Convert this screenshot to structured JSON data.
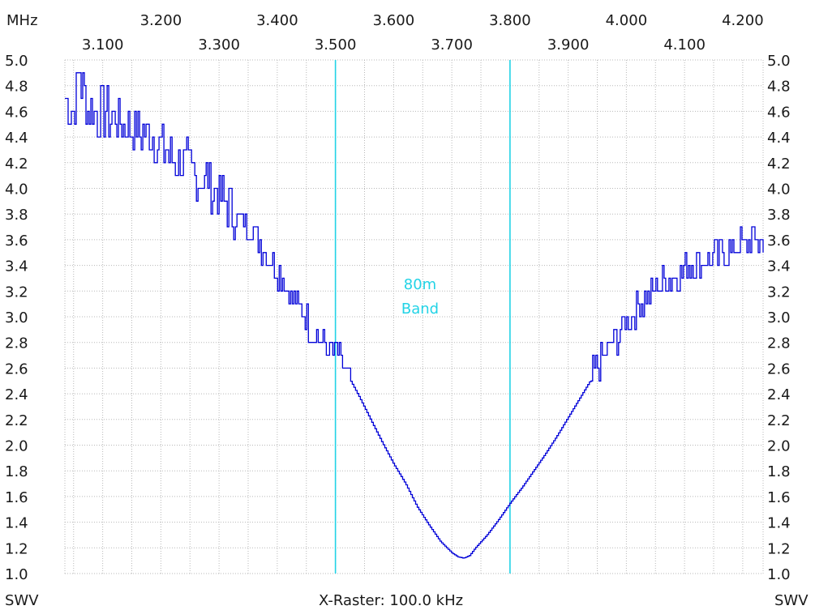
{
  "labels": {
    "unit_top_left": "MHz",
    "y_label_left": "SWV",
    "y_label_right": "SWV",
    "raster": "X-Raster: 100.0 kHz",
    "band_line1": "80m",
    "band_line2": "Band"
  },
  "colors": {
    "trace": "#0000d8",
    "band": "#22d3e6",
    "grid": "#b8b8b8",
    "text": "#1a1a1a"
  },
  "chart_data": {
    "type": "line",
    "title": "",
    "xlabel": "X-Raster: 100.0 kHz",
    "ylabel": "SWV",
    "xlim": [
      3.035,
      4.235
    ],
    "ylim": [
      1.0,
      5.0
    ],
    "grid": true,
    "x_ticks_top": [
      "3.200",
      "3.400",
      "3.600",
      "3.800",
      "4.000",
      "4.200"
    ],
    "x_ticks_bottom": [
      "3.100",
      "3.300",
      "3.500",
      "3.700",
      "3.900",
      "4.100"
    ],
    "y_ticks": [
      "5.0",
      "4.8",
      "4.6",
      "4.4",
      "4.2",
      "4.0",
      "3.8",
      "3.6",
      "3.4",
      "3.2",
      "3.0",
      "2.8",
      "2.6",
      "2.4",
      "2.2",
      "2.0",
      "1.8",
      "1.6",
      "1.4",
      "1.2",
      "1.0"
    ],
    "band_markers": [
      3.5,
      3.8
    ],
    "annotations": [
      {
        "text": "80m Band",
        "x": 3.65,
        "y": 3.05
      }
    ],
    "series": [
      {
        "x": [
          3.035,
          3.05,
          3.06,
          3.07,
          3.08,
          3.09,
          3.1,
          3.12,
          3.14,
          3.16,
          3.18,
          3.2,
          3.22,
          3.24,
          3.26,
          3.28,
          3.3,
          3.32,
          3.34,
          3.36,
          3.38,
          3.4,
          3.42,
          3.44,
          3.46,
          3.48,
          3.5,
          3.52,
          3.54,
          3.56,
          3.58,
          3.6,
          3.62,
          3.64,
          3.66,
          3.68,
          3.7,
          3.71,
          3.72,
          3.73,
          3.74,
          3.76,
          3.78,
          3.8,
          3.82,
          3.84,
          3.86,
          3.88,
          3.9,
          3.92,
          3.94,
          3.96,
          3.98,
          4.0,
          4.02,
          4.04,
          4.06,
          4.08,
          4.1,
          4.12,
          4.14,
          4.16,
          4.18,
          4.2,
          4.22,
          4.235
        ],
        "y": [
          4.7,
          4.6,
          4.9,
          4.65,
          4.6,
          4.55,
          4.6,
          4.55,
          4.5,
          4.45,
          4.4,
          4.3,
          4.25,
          4.2,
          4.1,
          4.05,
          3.95,
          3.85,
          3.75,
          3.65,
          3.5,
          3.35,
          3.2,
          3.05,
          2.9,
          2.78,
          2.72,
          2.55,
          2.38,
          2.2,
          2.02,
          1.85,
          1.7,
          1.52,
          1.38,
          1.25,
          1.16,
          1.13,
          1.12,
          1.14,
          1.2,
          1.3,
          1.42,
          1.55,
          1.67,
          1.8,
          1.93,
          2.07,
          2.22,
          2.37,
          2.52,
          2.67,
          2.82,
          2.97,
          3.07,
          3.17,
          3.27,
          3.32,
          3.36,
          3.4,
          3.44,
          3.48,
          3.52,
          3.56,
          3.62,
          3.55
        ]
      }
    ]
  }
}
